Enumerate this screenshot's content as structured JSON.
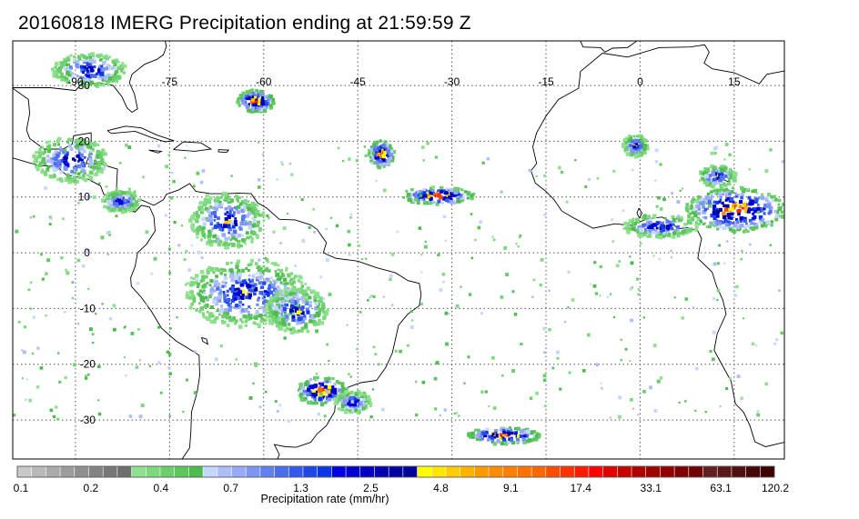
{
  "title": "20160818 IMERG Precipitation ending at 21:59:59 Z",
  "map": {
    "projection": "equirectangular",
    "lon_range": [
      -100,
      23
    ],
    "lat_range": [
      -37,
      38
    ],
    "grid": true,
    "lon_ticks": [
      -90,
      -75,
      -60,
      -45,
      -30,
      -15,
      0,
      15
    ],
    "lat_ticks": [
      30,
      20,
      10,
      0,
      -10,
      -20,
      -30
    ],
    "lon_tick_labels": [
      "-90",
      "-75",
      "-60",
      "-45",
      "-30",
      "-15",
      "0",
      "15"
    ],
    "lat_tick_labels": [
      "30",
      "20",
      "10",
      "0",
      "-10",
      "-20",
      "-30"
    ],
    "precip_clusters": [
      {
        "lon": -61.5,
        "lat": 27.5,
        "rx": 3.0,
        "ry": 2.0,
        "level": "high"
      },
      {
        "lon": -41.5,
        "lat": 18.0,
        "rx": 2.0,
        "ry": 2.5,
        "level": "high"
      },
      {
        "lon": -32.5,
        "lat": 10.5,
        "rx": 6.0,
        "ry": 1.5,
        "level": "high"
      },
      {
        "lon": -88.0,
        "lat": 33.0,
        "rx": 6.0,
        "ry": 3.0,
        "level": "medium"
      },
      {
        "lon": -91.0,
        "lat": 17.0,
        "rx": 6.0,
        "ry": 4.0,
        "level": "medium"
      },
      {
        "lon": -83.0,
        "lat": 9.5,
        "rx": 3.0,
        "ry": 2.0,
        "level": "medium"
      },
      {
        "lon": -66.0,
        "lat": 6.0,
        "rx": 6.0,
        "ry": 5.0,
        "level": "medium"
      },
      {
        "lon": -63.0,
        "lat": -7.0,
        "rx": 10.0,
        "ry": 6.0,
        "level": "medium"
      },
      {
        "lon": -55.0,
        "lat": -10.0,
        "rx": 5.0,
        "ry": 4.0,
        "level": "medium"
      },
      {
        "lon": -51.0,
        "lat": -24.5,
        "rx": 4.0,
        "ry": 2.5,
        "level": "high"
      },
      {
        "lon": -46.0,
        "lat": -26.5,
        "rx": 3.0,
        "ry": 2.0,
        "level": "medium"
      },
      {
        "lon": -22.0,
        "lat": -32.5,
        "rx": 6.0,
        "ry": 1.5,
        "level": "high"
      },
      {
        "lon": -1.0,
        "lat": 19.5,
        "rx": 2.0,
        "ry": 2.0,
        "level": "medium"
      },
      {
        "lon": 3.0,
        "lat": 5.0,
        "rx": 6.0,
        "ry": 2.0,
        "level": "medium"
      },
      {
        "lon": 15.0,
        "lat": 8.0,
        "rx": 8.0,
        "ry": 4.0,
        "level": "high"
      },
      {
        "lon": 12.0,
        "lat": 14.0,
        "rx": 3.0,
        "ry": 2.0,
        "level": "medium"
      }
    ]
  },
  "colorbar": {
    "colors": [
      "#c8c8c8",
      "#b9b9b9",
      "#ababab",
      "#9d9d9d",
      "#8f8f8f",
      "#838383",
      "#777777",
      "#6e6e6e",
      "#8fe08f",
      "#7ed87e",
      "#6ccf6c",
      "#5cc65c",
      "#4cbd4c",
      "#c6d7ff",
      "#aebff7",
      "#96aaf5",
      "#7d95f3",
      "#6380f0",
      "#4b6ced",
      "#3559eb",
      "#1e47e8",
      "#0b37e6",
      "#0000e0",
      "#0000d0",
      "#0000c0",
      "#0000b0",
      "#0000a0",
      "#00009a",
      "#ffff00",
      "#ffe600",
      "#ffcc00",
      "#ffb300",
      "#ff9900",
      "#ff8c00",
      "#ff7f00",
      "#ff7200",
      "#ff6600",
      "#ff4d00",
      "#ff3300",
      "#ff1a00",
      "#ff0000",
      "#e00000",
      "#c80000",
      "#b00000",
      "#a00000",
      "#900000",
      "#800000",
      "#700000",
      "#632020",
      "#5a1818",
      "#501010",
      "#460808",
      "#3c0000"
    ],
    "tick_labels": [
      "0.1",
      "0.2",
      "0.4",
      "0.7",
      "1.3",
      "2.5",
      "4.8",
      "9.1",
      "17.4",
      "33.1",
      "63.1",
      "120.2"
    ],
    "label": "Precipitation rate (mm/hr)"
  }
}
